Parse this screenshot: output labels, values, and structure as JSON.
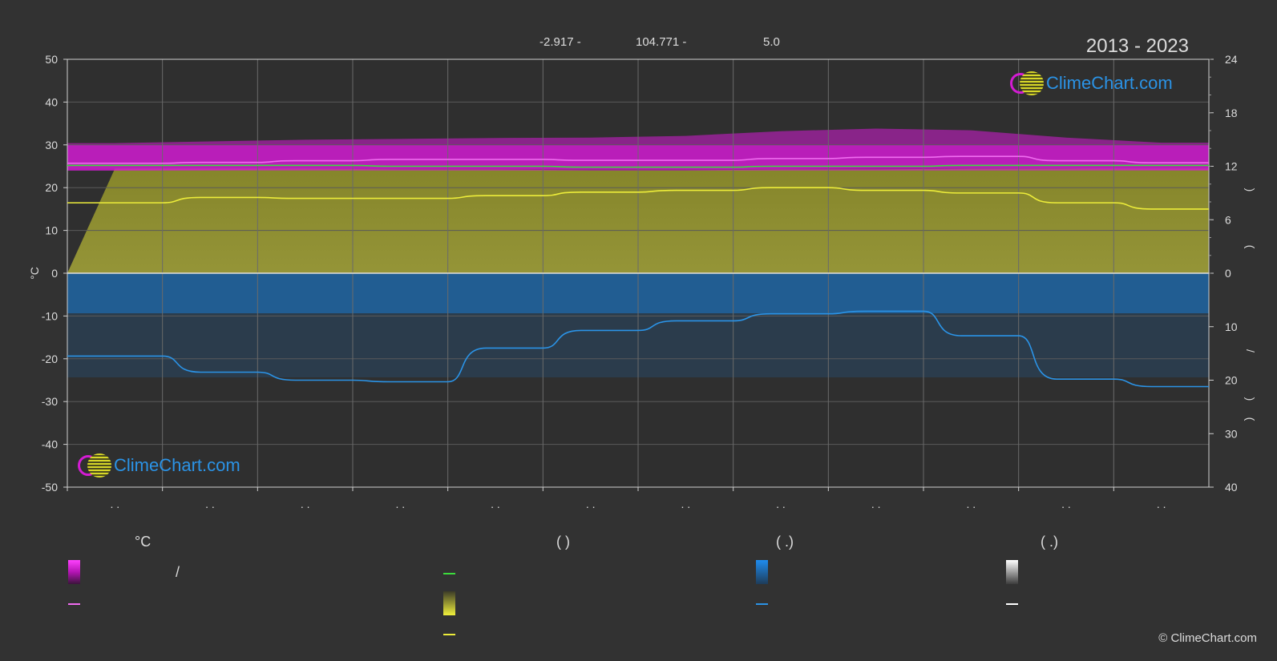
{
  "header": {
    "coord_lat": "-2.917 -",
    "coord_lon": "104.771 -",
    "coord_elev": "5.0",
    "year_range": "2013 - 2023"
  },
  "axes": {
    "left_unit": "°C",
    "left_ticks": [
      "50",
      "40",
      "30",
      "20",
      "10",
      "0",
      "-10",
      "-20",
      "-30",
      "-40",
      "-50"
    ],
    "right_top_ticks": [
      "24",
      "18",
      "12",
      "6",
      "0"
    ],
    "right_bottom_ticks": [
      "10",
      "20",
      "30",
      "40"
    ],
    "right_label_chars": [
      ")",
      "(",
      "/",
      ")",
      "("
    ],
    "month_labels": [
      ". .",
      ". .",
      ". .",
      ". .",
      ". .",
      ". .",
      ". .",
      ". .",
      ". .",
      ". .",
      ". .",
      ". ."
    ]
  },
  "legend": {
    "col1_head": "°C",
    "col1_slash": "/",
    "col2_head": "(         )",
    "col3_head": "(    .)",
    "col4_head": "(    .)"
  },
  "logo_text": "ClimeChart.com",
  "copyright": "© ClimeChart.com",
  "colors": {
    "background": "#323232",
    "temp_band": "#d31cd3",
    "sun_band": "#b4b432",
    "rain_band": "#1e6eb4",
    "mean_temp_line": "#f06cf0",
    "daylight_line": "#3cdc3c",
    "sunshine_line": "#ecec3a",
    "rain_line": "#2b93e6",
    "grid": "#5a5a5a"
  },
  "chart_data": {
    "type": "area",
    "title": "",
    "period": "2013 - 2023",
    "x": [
      "m1",
      "m2",
      "m3",
      "m4",
      "m5",
      "m6",
      "m7",
      "m8",
      "m9",
      "m10",
      "m11",
      "m12"
    ],
    "left_axis": {
      "label": "°C",
      "range": [
        -50,
        50
      ]
    },
    "right_axis_top": {
      "range": [
        0,
        24
      ]
    },
    "right_axis_bottom": {
      "range": [
        0,
        40
      ]
    },
    "grid": true,
    "series": [
      {
        "type": "band",
        "values_min": [
          24.0,
          24.1,
          24.3,
          24.4,
          24.4,
          24.4,
          24.3,
          24.4,
          24.6,
          24.6,
          24.5,
          24.1
        ],
        "values_max": [
          30.4,
          30.8,
          31.2,
          31.4,
          31.6,
          31.7,
          32.1,
          33.2,
          33.8,
          33.4,
          31.7,
          30.5
        ]
      },
      {
        "type": "line",
        "values": [
          25.7,
          25.9,
          26.3,
          26.6,
          26.6,
          26.4,
          26.4,
          26.8,
          27.1,
          27.3,
          26.3,
          25.8
        ]
      },
      {
        "type": "line",
        "values": [
          12.1,
          12.1,
          12.1,
          12.0,
          12.0,
          11.9,
          11.9,
          12.0,
          12.0,
          12.1,
          12.1,
          12.1
        ]
      },
      {
        "type": "line",
        "values": [
          7.9,
          8.5,
          8.4,
          8.4,
          8.7,
          9.1,
          9.3,
          9.6,
          9.3,
          9.0,
          7.9,
          7.2
        ]
      },
      {
        "type": "line",
        "values": [
          15.5,
          18.5,
          20.0,
          20.3,
          14.0,
          10.7,
          8.9,
          7.6,
          7.1,
          11.7,
          19.8,
          21.2
        ]
      }
    ]
  }
}
